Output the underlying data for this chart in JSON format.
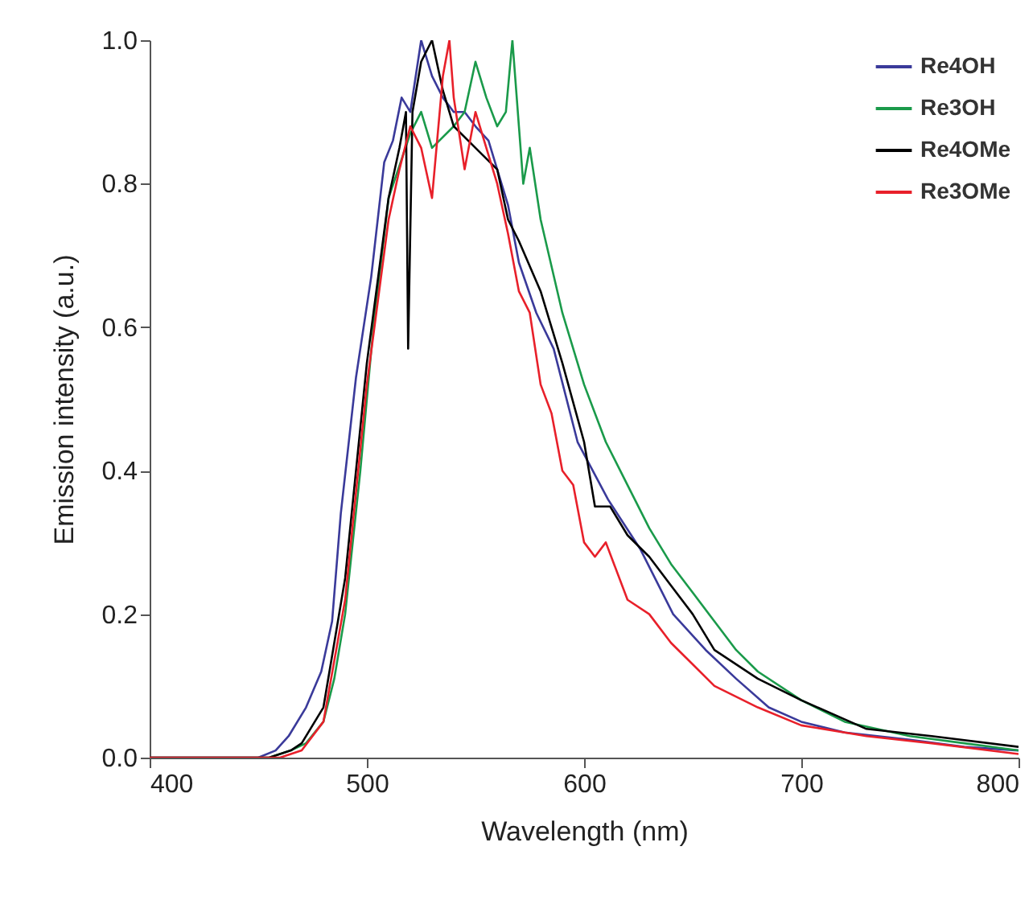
{
  "chart_data": {
    "type": "line",
    "xlabel": "Wavelength (nm)",
    "ylabel": "Emission intensity (a.u.)",
    "xlim": [
      400,
      800
    ],
    "ylim": [
      0,
      1
    ],
    "xticks": [
      400,
      500,
      600,
      700,
      800
    ],
    "yticks": [
      {
        "value": 0,
        "label": "0.0"
      },
      {
        "value": 0.2,
        "label": "0.2"
      },
      {
        "value": 0.4,
        "label": "0.4"
      },
      {
        "value": 0.6,
        "label": "0.6"
      },
      {
        "value": 0.8,
        "label": "0.8"
      },
      {
        "value": 1,
        "label": "1.0"
      }
    ],
    "grid": false,
    "legend": "top right",
    "marker": "none",
    "line_style": "solid",
    "series": [
      {
        "name": "Re4OH",
        "color": "#3a3a9a",
        "x": [
          400,
          450,
          458,
          464,
          472,
          479,
          484,
          488,
          495,
          502,
          508,
          512,
          516,
          520,
          525,
          530,
          535,
          540,
          545,
          550,
          556,
          560,
          565,
          570,
          578,
          586,
          597,
          611,
          626,
          641,
          656,
          670,
          685,
          700,
          720,
          750,
          775,
          800
        ],
        "values": [
          0,
          0,
          0.01,
          0.03,
          0.07,
          0.12,
          0.19,
          0.34,
          0.53,
          0.67,
          0.83,
          0.86,
          0.92,
          0.9,
          1.0,
          0.95,
          0.92,
          0.9,
          0.9,
          0.88,
          0.86,
          0.82,
          0.77,
          0.69,
          0.62,
          0.57,
          0.44,
          0.36,
          0.29,
          0.2,
          0.15,
          0.11,
          0.07,
          0.05,
          0.035,
          0.025,
          0.015,
          0.01
        ]
      },
      {
        "name": "Re3OH",
        "color": "#1a9a4a",
        "x": [
          400,
          455,
          465,
          472,
          480,
          485,
          490,
          497,
          503,
          510,
          520,
          525,
          530,
          540,
          545,
          550,
          555,
          560,
          564,
          567,
          570,
          572,
          575,
          580,
          590,
          600,
          610,
          620,
          630,
          640,
          650,
          660,
          670,
          680,
          700,
          720,
          750,
          775,
          800
        ],
        "values": [
          0,
          0,
          0.01,
          0.02,
          0.05,
          0.11,
          0.2,
          0.4,
          0.6,
          0.78,
          0.87,
          0.9,
          0.85,
          0.88,
          0.9,
          0.97,
          0.92,
          0.88,
          0.9,
          1.0,
          0.88,
          0.8,
          0.85,
          0.75,
          0.62,
          0.52,
          0.44,
          0.38,
          0.32,
          0.27,
          0.23,
          0.19,
          0.15,
          0.12,
          0.08,
          0.05,
          0.03,
          0.02,
          0.01
        ]
      },
      {
        "name": "Re4OMe",
        "color": "#000000",
        "x": [
          400,
          455,
          465,
          470,
          480,
          490,
          500,
          510,
          515,
          518,
          519,
          521,
          525,
          530,
          535,
          540,
          550,
          560,
          565,
          570,
          580,
          590,
          600,
          605,
          612,
          620,
          630,
          640,
          650,
          660,
          680,
          700,
          730,
          760,
          800
        ],
        "values": [
          0,
          0,
          0.01,
          0.02,
          0.07,
          0.25,
          0.55,
          0.78,
          0.85,
          0.9,
          0.57,
          0.9,
          0.97,
          1.0,
          0.93,
          0.88,
          0.85,
          0.82,
          0.75,
          0.72,
          0.65,
          0.55,
          0.44,
          0.35,
          0.35,
          0.31,
          0.28,
          0.24,
          0.2,
          0.15,
          0.11,
          0.08,
          0.04,
          0.03,
          0.015
        ]
      },
      {
        "name": "Re3OMe",
        "color": "#e8202a",
        "x": [
          400,
          460,
          470,
          480,
          490,
          500,
          510,
          515,
          520,
          525,
          530,
          535,
          538,
          540,
          545,
          550,
          555,
          560,
          565,
          570,
          575,
          580,
          585,
          590,
          595,
          600,
          605,
          610,
          620,
          630,
          640,
          650,
          660,
          680,
          700,
          730,
          760,
          800
        ],
        "values": [
          0,
          0,
          0.01,
          0.05,
          0.22,
          0.52,
          0.75,
          0.82,
          0.88,
          0.85,
          0.78,
          0.95,
          1.0,
          0.92,
          0.82,
          0.9,
          0.85,
          0.8,
          0.73,
          0.65,
          0.62,
          0.52,
          0.48,
          0.4,
          0.38,
          0.3,
          0.28,
          0.3,
          0.22,
          0.2,
          0.16,
          0.13,
          0.1,
          0.07,
          0.045,
          0.03,
          0.02,
          0.005
        ]
      }
    ]
  }
}
